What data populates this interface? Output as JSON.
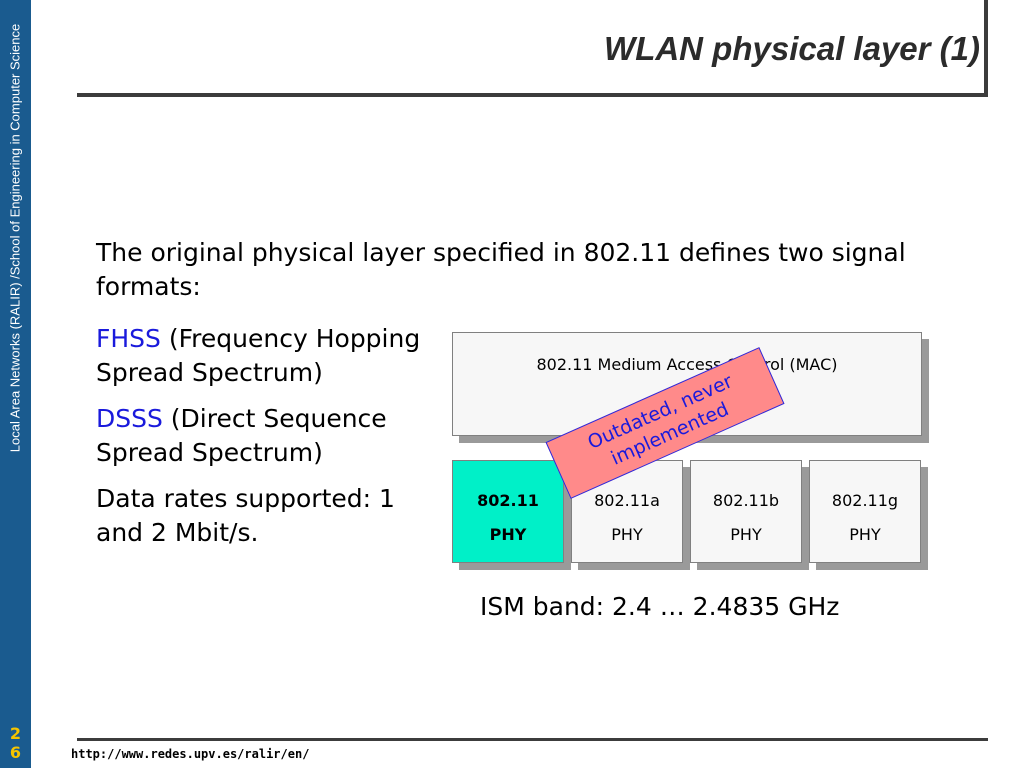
{
  "sidebar": {
    "text": "Local Area Networks (RALIR) /School of Engineering in Computer Science",
    "page_number_line1": "2",
    "page_number_line2": "6"
  },
  "slide": {
    "title": "WLAN physical layer (1)",
    "intro": "The original physical layer specified in 802.11 defines two signal formats:",
    "bullets": [
      {
        "term": "FHSS",
        "text": " (Frequency Hopping Spread Spectrum)"
      },
      {
        "term": "DSSS",
        "text": " (Direct Sequence Spread Spectrum)"
      },
      {
        "text": "Data rates supported: 1 and 2 Mbit/s."
      }
    ],
    "diagram": {
      "mac_label": "802.11  Medium Access Control (MAC)",
      "phy_boxes": [
        {
          "line1": "802.11",
          "line2": "PHY"
        },
        {
          "line1": "802.11a",
          "line2": "PHY"
        },
        {
          "line1": "802.11b",
          "line2": "PHY"
        },
        {
          "line1": "802.11g",
          "line2": "PHY"
        }
      ],
      "stamp": "Outdated, never implemented"
    },
    "ism_band": "ISM band: 2.4 … 2.4835 GHz"
  },
  "footer": {
    "url": "http://www.redes.upv.es/ralir/en/"
  },
  "colors": {
    "sidebar": "#1a5b8f",
    "page_number": "#f5c400",
    "highlight_blue": "#1a1adc",
    "phy_highlight": "#00f0c8",
    "stamp_fill": "#ff8a8a"
  }
}
